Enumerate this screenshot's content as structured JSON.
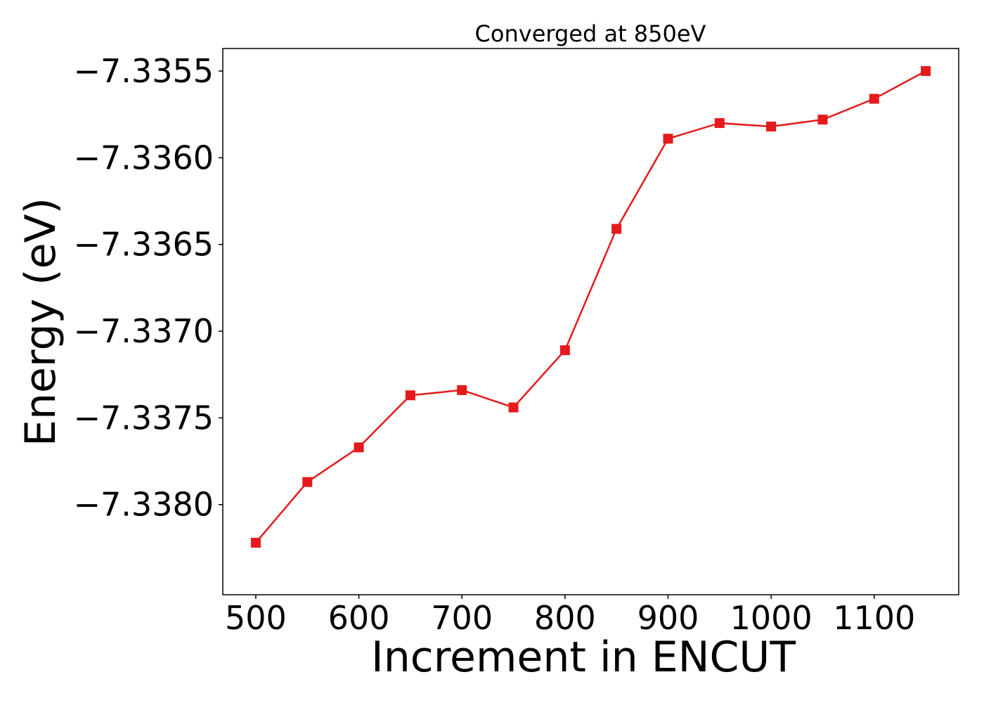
{
  "chart_data": {
    "type": "line",
    "title": "Converged at 850eV",
    "xlabel": "Increment in ENCUT",
    "ylabel": "Energy (eV)",
    "xlim": [
      468,
      1182
    ],
    "ylim": [
      -7.33852,
      -7.33537
    ],
    "xticks": [
      500,
      600,
      700,
      800,
      900,
      1000,
      1100
    ],
    "xtick_labels": [
      "500",
      "600",
      "700",
      "800",
      "900",
      "1000",
      "1100"
    ],
    "yticks": [
      -7.3355,
      -7.336,
      -7.3365,
      -7.337,
      -7.3375,
      -7.338
    ],
    "ytick_labels": [
      "−7.3355",
      "−7.3360",
      "−7.3365",
      "−7.3370",
      "−7.3375",
      "−7.3380"
    ],
    "grid": false,
    "legend": "none",
    "series": [
      {
        "color": "#e41a1c",
        "marker": "square",
        "x": [
          500,
          550,
          600,
          650,
          700,
          750,
          800,
          850,
          900,
          950,
          1000,
          1050,
          1100,
          1150
        ],
        "y": [
          -7.33822,
          -7.33787,
          -7.33767,
          -7.33737,
          -7.33734,
          -7.33744,
          -7.33711,
          -7.33641,
          -7.33589,
          -7.3358,
          -7.33582,
          -7.33578,
          -7.33566,
          -7.3355
        ]
      }
    ]
  }
}
